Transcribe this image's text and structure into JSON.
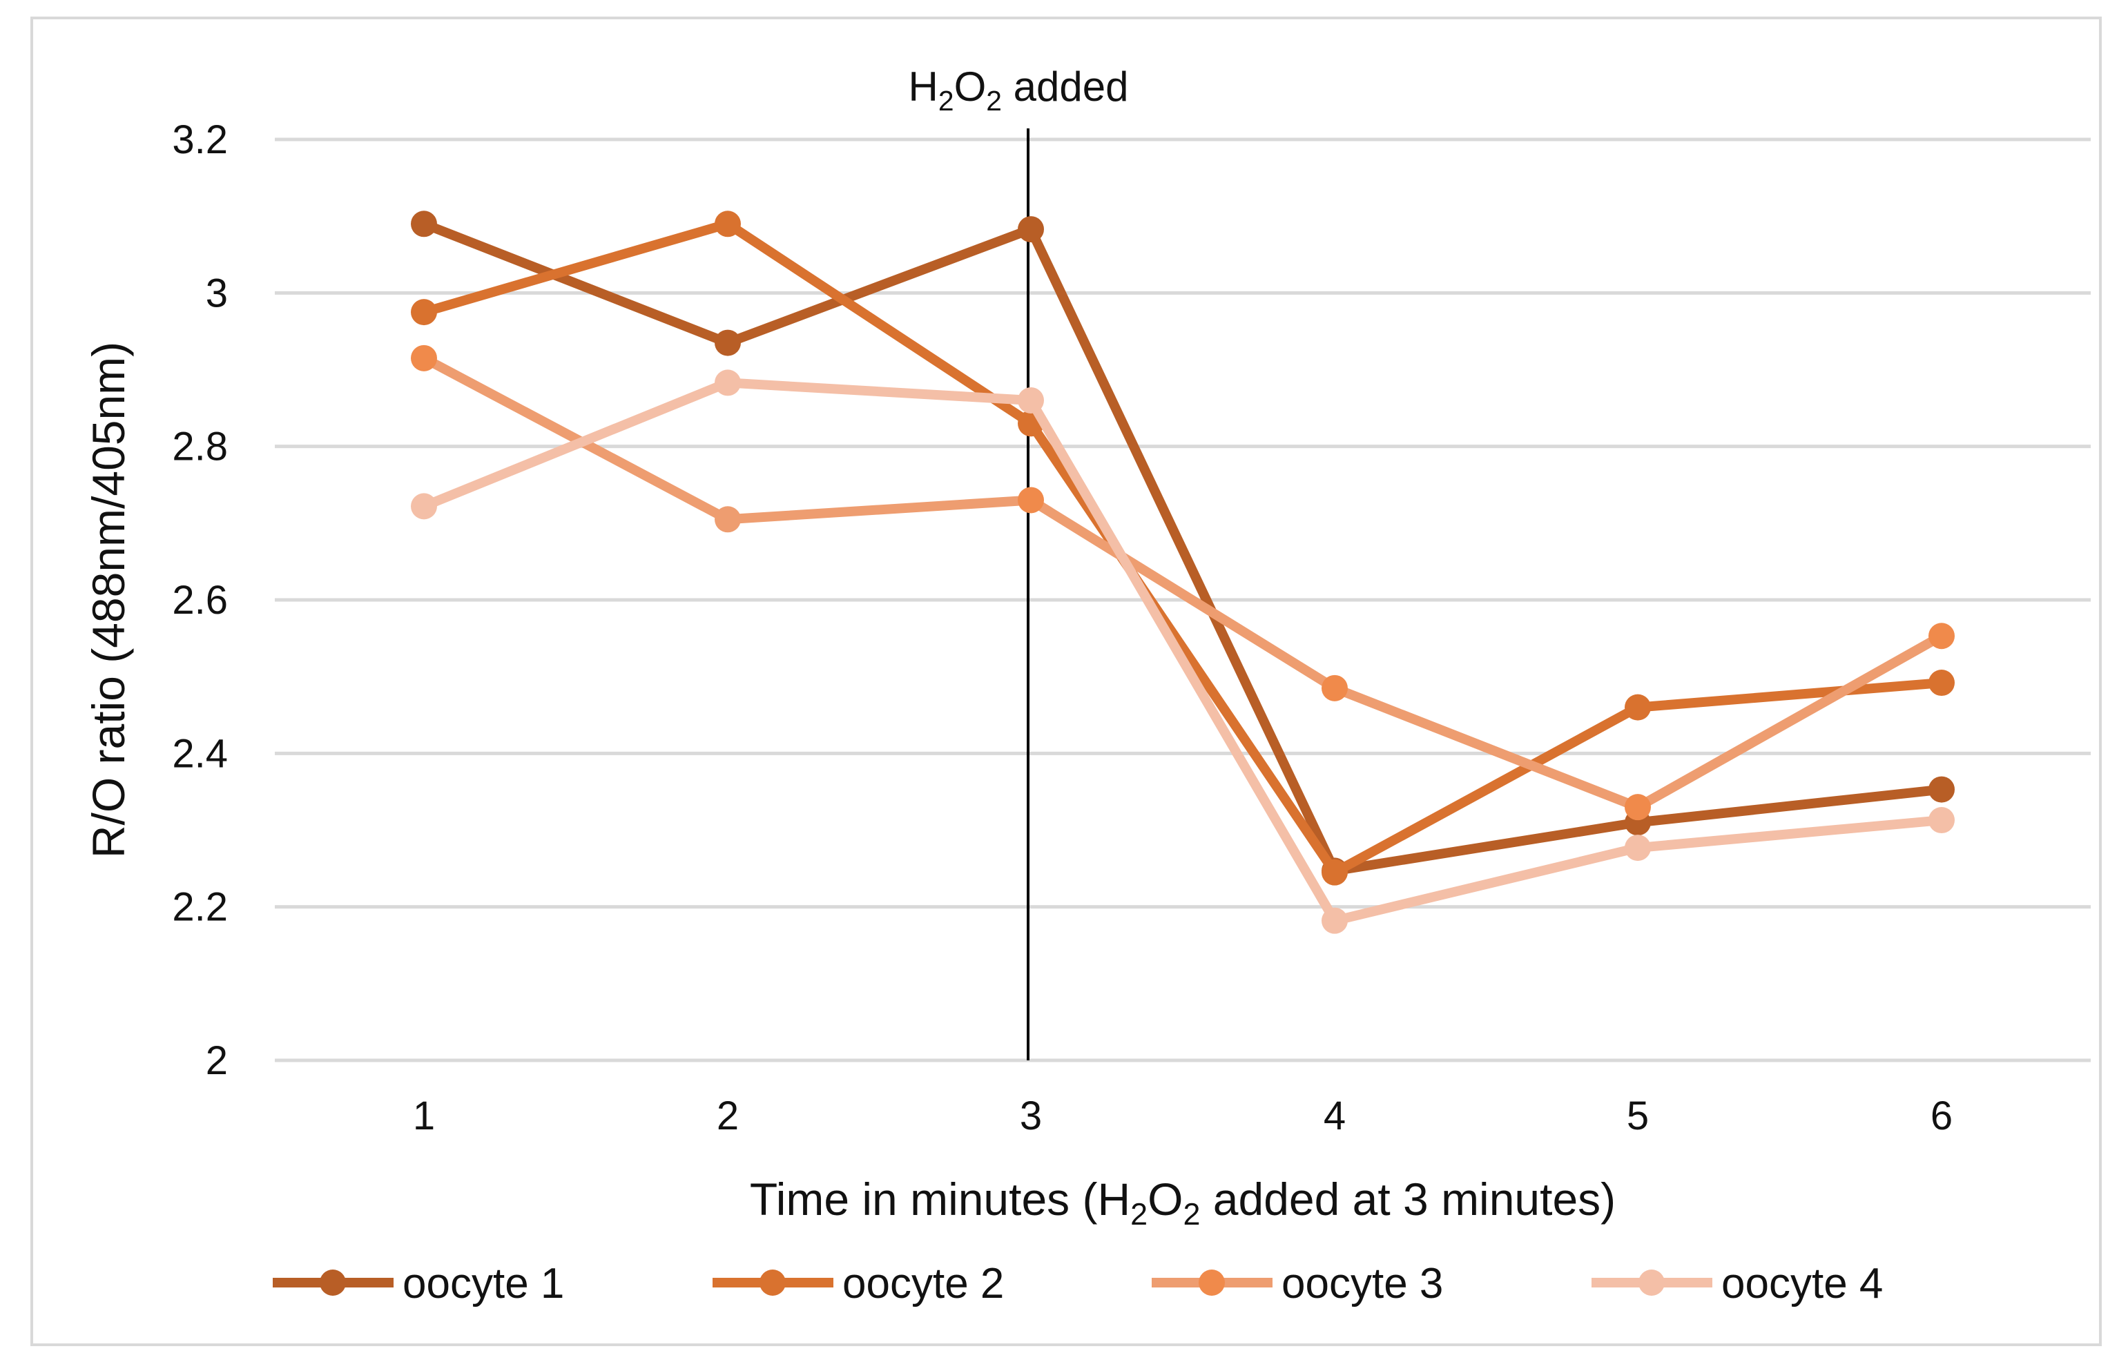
{
  "chart_data": {
    "type": "line",
    "title": "",
    "xlabel_parts": [
      "Time in minutes (H",
      "2",
      "O",
      "2",
      " added at 3 minutes)"
    ],
    "ylabel": "R/O ratio (488nm/405nm)",
    "categories": [
      "1",
      "2",
      "3",
      "4",
      "5",
      "6"
    ],
    "y_ticks": [
      "2",
      "2.2",
      "2.4",
      "2.6",
      "2.8",
      "3",
      "3.2"
    ],
    "ylim": [
      2,
      3.2
    ],
    "grid": true,
    "legend_position": "bottom",
    "annotation": {
      "label_parts": [
        "H",
        "2",
        "O",
        "2",
        " added"
      ],
      "at_category": "3"
    },
    "series": [
      {
        "name": "oocyte 1",
        "color": "#b85e26",
        "values": [
          3.09,
          2.935,
          3.083,
          2.247,
          2.31,
          2.353
        ]
      },
      {
        "name": "oocyte 2",
        "color": "#d9722f",
        "values": [
          2.975,
          3.09,
          2.83,
          2.245,
          2.46,
          2.492
        ]
      },
      {
        "name": "oocyte 3",
        "color": "#ee9d70",
        "values": [
          2.915,
          2.705,
          2.73,
          2.485,
          2.33,
          2.553
        ]
      },
      {
        "name": "oocyte 4",
        "color": "#f4bfa7",
        "values": [
          2.722,
          2.883,
          2.86,
          2.182,
          2.277,
          2.313
        ]
      }
    ],
    "marker_color_overrides": {
      "oocyte 3": {
        "4": "#f08a4b",
        "5": "#f08a4b",
        "6": "#f08a4b",
        "1": "#f08a4b",
        "3": "#f08a4b"
      }
    }
  }
}
